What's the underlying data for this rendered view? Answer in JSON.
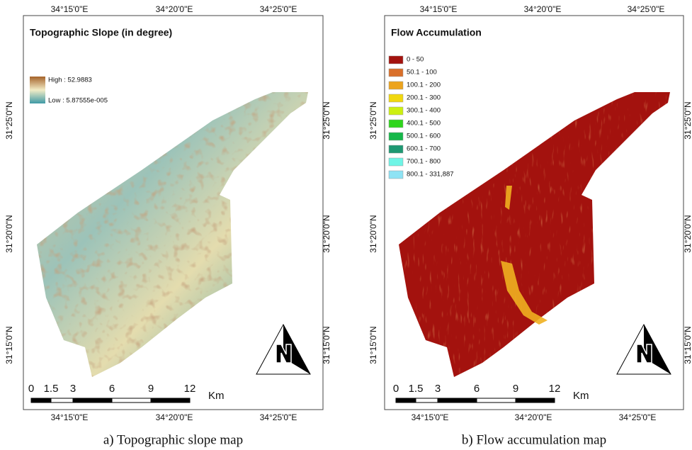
{
  "panels": [
    {
      "title": "Topographic Slope (in degree)",
      "legend": {
        "high": "High : 52.9883",
        "low": "Low : 5.87555e-005"
      },
      "top_ticks": [
        "34°15'0\"E",
        "34°20'0\"E",
        "34°25'0\"E"
      ],
      "bottom_ticks": [
        "34°15'0\"E",
        "34°20'0\"E",
        "34°25'0\"E"
      ],
      "left_ticks": [
        "31°25'0\"N",
        "31°20'0\"N",
        "31°15'0\"N"
      ],
      "right_ticks": [
        "31°25'0\"N",
        "31°20'0\"N",
        "31°15'0\"N"
      ],
      "scale": {
        "labels": [
          "0",
          "1.5",
          "3",
          "6",
          "9",
          "12"
        ],
        "unit": "Km"
      },
      "caption": "a) Topographic slope map"
    },
    {
      "title": "Flow Accumulation",
      "legend": {
        "classes": [
          {
            "label": "0 - 50",
            "color": "#a3120e"
          },
          {
            "label": "50.1 - 100",
            "color": "#d9702a"
          },
          {
            "label": "100.1 - 200",
            "color": "#eca41e"
          },
          {
            "label": "200.1 - 300",
            "color": "#f1d80e"
          },
          {
            "label": "300.1 - 400",
            "color": "#cdf011"
          },
          {
            "label": "400.1 - 500",
            "color": "#2fd51c"
          },
          {
            "label": "500.1 - 600",
            "color": "#16b84a"
          },
          {
            "label": "600.1 - 700",
            "color": "#1e9872"
          },
          {
            "label": "700.1 - 800",
            "color": "#6ff5e6"
          },
          {
            "label": "800.1 - 331,887",
            "color": "#8ee3f4"
          }
        ]
      },
      "top_ticks": [
        "34°15'0\"E",
        "34°20'0\"E",
        "34°25'0\"E"
      ],
      "bottom_ticks": [
        "34°15'0\"E",
        "34°20'0\"E",
        "34°25'0\"E"
      ],
      "left_ticks": [
        "31°25'0\"N",
        "31°20'0\"N",
        "31°15'0\"N"
      ],
      "right_ticks": [
        "31°25'0\"N",
        "31°20'0\"N",
        "31°15'0\"N"
      ],
      "scale": {
        "labels": [
          "0",
          "1.5",
          "3",
          "6",
          "9",
          "12"
        ],
        "unit": "Km"
      },
      "caption": "b) Flow accumulation map"
    }
  ]
}
